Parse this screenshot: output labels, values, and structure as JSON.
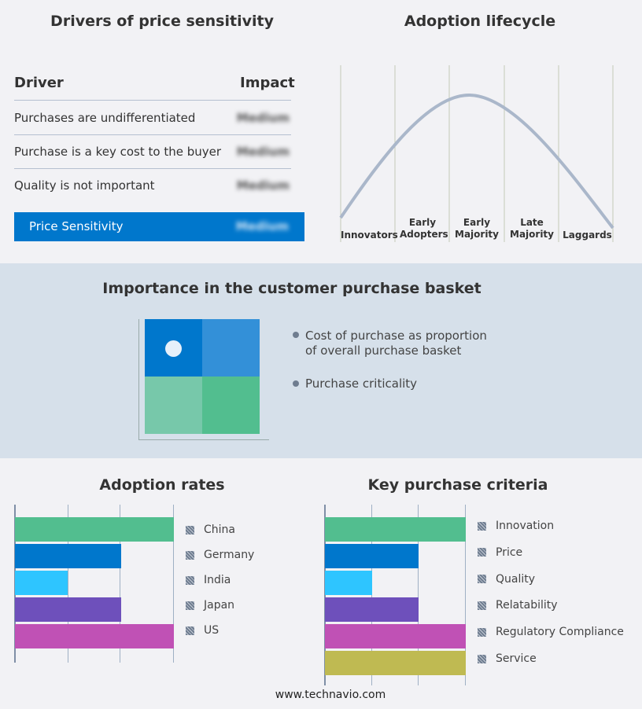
{
  "price_sensitivity": {
    "title": "Drivers of price sensitivity",
    "col_driver": "Driver",
    "col_impact": "Impact",
    "rows": [
      {
        "driver": "Purchases are undifferentiated",
        "impact": "Medium"
      },
      {
        "driver": "Purchase is a key cost to the buyer",
        "impact": "Medium"
      },
      {
        "driver": "Quality is not important",
        "impact": "Medium"
      }
    ],
    "summary": {
      "label": "Price Sensitivity",
      "impact": "Medium",
      "color": "#0077cc"
    }
  },
  "lifecycle": {
    "title": "Adoption lifecycle",
    "stages": [
      "Innovators",
      "Early Adopters",
      "Early Majority",
      "Late Majority",
      "Laggards"
    ]
  },
  "basket": {
    "title": "Importance in the customer purchase basket",
    "legend": [
      "Cost of purchase as proportion of overall purchase basket",
      "Purchase criticality"
    ],
    "quadrant_colors": [
      "#0077cc",
      "#3390d8",
      "#77c8aa",
      "#52be8f"
    ]
  },
  "footer": "www.technavio.com",
  "chart_data": [
    {
      "type": "bar",
      "title": "Adoption rates",
      "categories": [
        "China",
        "Germany",
        "India",
        "Japan",
        "US"
      ],
      "values": [
        3,
        2,
        1,
        2,
        3
      ],
      "xlim": [
        0,
        3
      ],
      "grid": true,
      "legend": "right",
      "colors": [
        "#52be8f",
        "#0077cc",
        "#2ec5ff",
        "#6e50bb",
        "#c051b5"
      ]
    },
    {
      "type": "bar",
      "title": "Key purchase criteria",
      "categories": [
        "Innovation",
        "Price",
        "Quality",
        "Relatability",
        "Regulatory Compliance",
        "Service"
      ],
      "values": [
        3,
        2,
        1,
        2,
        3,
        3
      ],
      "xlim": [
        0,
        3
      ],
      "grid": true,
      "legend": "right",
      "colors": [
        "#52be8f",
        "#0077cc",
        "#2ec5ff",
        "#6e50bb",
        "#c051b5",
        "#bfba52"
      ]
    }
  ]
}
